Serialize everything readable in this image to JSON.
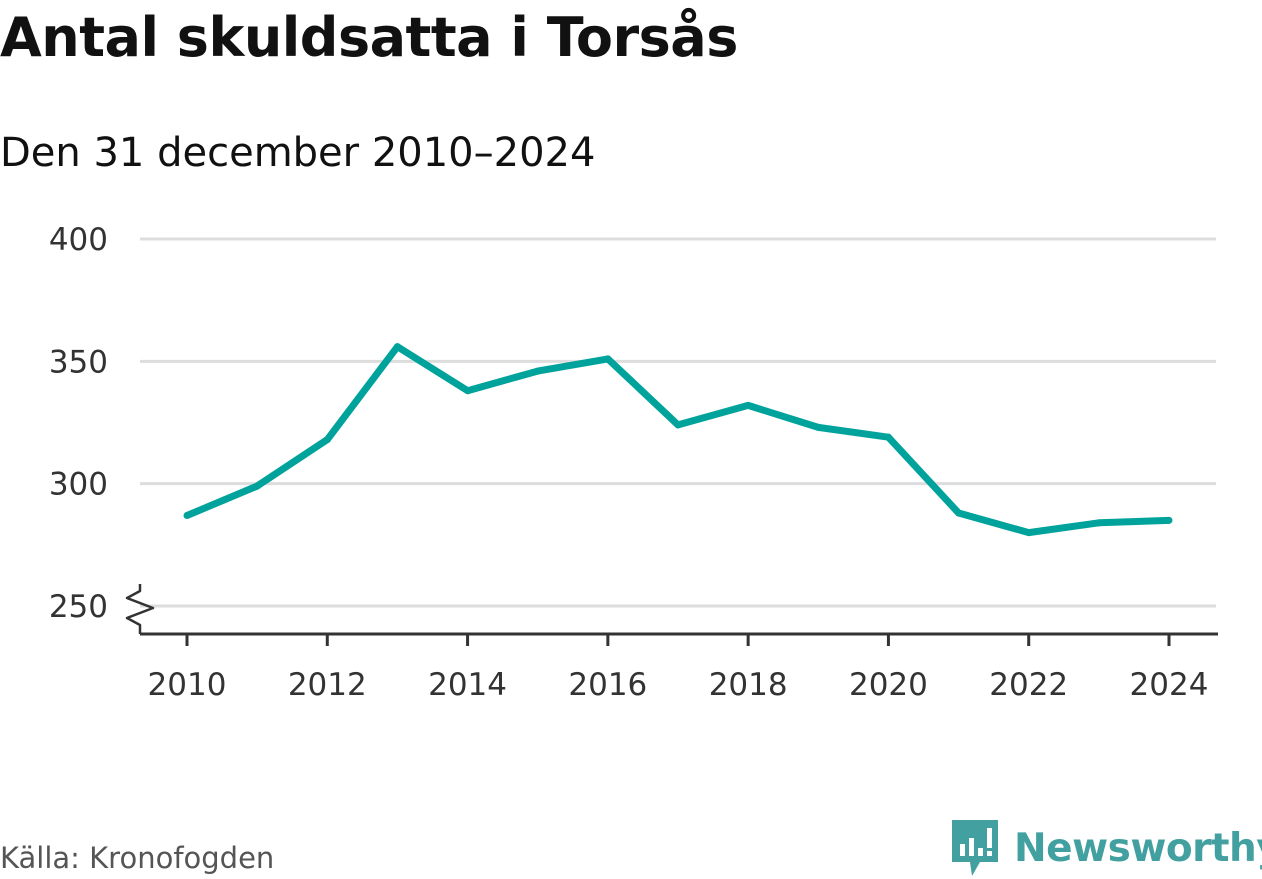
{
  "title": "Antal skuldsatta i Torsås",
  "subtitle": "Den 31 december 2010–2024",
  "source": "Källa: Kronofogden",
  "brand": {
    "name": "Newsworthy",
    "color": "#43a0a0",
    "icon": "newsworthy-logo-icon"
  },
  "colors": {
    "line": "#00a39b",
    "grid": "#dddddd",
    "axis": "#333333",
    "text": "#111111"
  },
  "chart_data": {
    "type": "line",
    "title": "Antal skuldsatta i Torsås",
    "subtitle": "Den 31 december 2010–2024",
    "xlabel": "",
    "ylabel": "",
    "x": [
      2010,
      2011,
      2012,
      2013,
      2014,
      2015,
      2016,
      2017,
      2018,
      2019,
      2020,
      2021,
      2022,
      2023,
      2024
    ],
    "series": [
      {
        "values": [
          287,
          299,
          318,
          356,
          338,
          346,
          351,
          324,
          332,
          323,
          319,
          288,
          280,
          284,
          285
        ]
      }
    ],
    "ylim": [
      250,
      400
    ],
    "y_axis_break": true,
    "xlim": [
      2010,
      2024
    ],
    "yticks": [
      250,
      300,
      350,
      400
    ],
    "xticks": [
      2010,
      2012,
      2014,
      2016,
      2018,
      2020,
      2022,
      2024
    ],
    "grid": true,
    "legend": "none"
  }
}
